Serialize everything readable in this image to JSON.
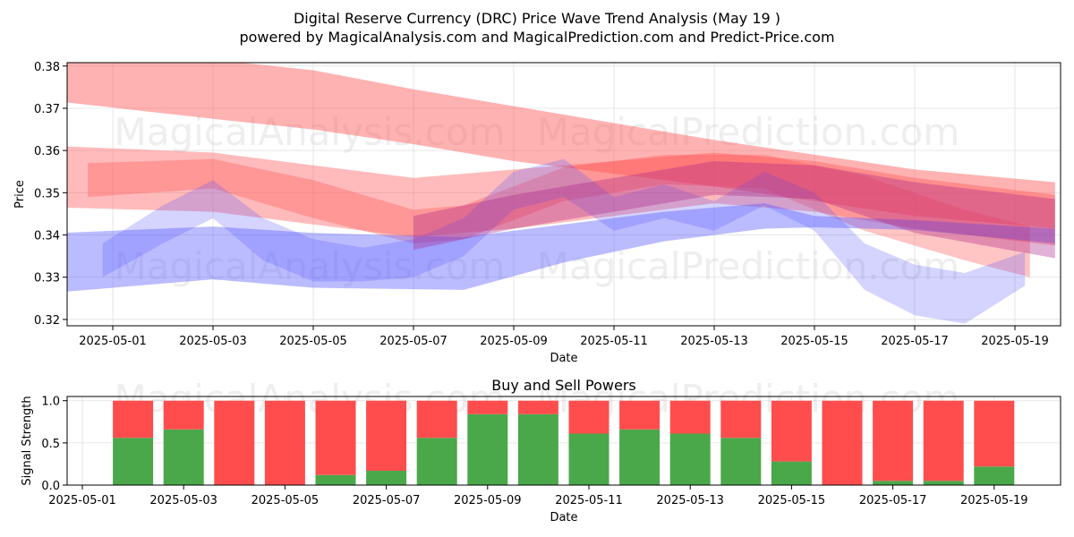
{
  "title_line1": "Digital Reserve Currency (DRC) Price Wave Trend Analysis (May 19 )",
  "title_line2": "powered by MagicalAnalysis.com and MagicalPrediction.com and Predict-Price.com",
  "watermarks": [
    "MagicalAnalysis.com",
    "MagicalPrediction.com"
  ],
  "colors": {
    "sell": "#ff4d4d",
    "buy": "#4aa84a",
    "red_band": "#ff5555",
    "blue_band": "#5555ff",
    "purple_band": "#aa2288"
  },
  "chart_data": [
    {
      "type": "area",
      "title": "",
      "xlabel": "Date",
      "ylabel": "Price",
      "ylim": [
        0.3185,
        0.3808
      ],
      "grid": true,
      "x_tick_labels": [
        "2025-05-01",
        "2025-05-03",
        "2025-05-05",
        "2025-05-07",
        "2025-05-09",
        "2025-05-11",
        "2025-05-13",
        "2025-05-15",
        "2025-05-17",
        "2025-05-19"
      ],
      "y_tick_labels": [
        "0.32",
        "0.33",
        "0.34",
        "0.35",
        "0.36",
        "0.37",
        "0.38"
      ],
      "y_ticks": [
        0.32,
        0.33,
        0.34,
        0.35,
        0.36,
        0.37,
        0.38
      ],
      "series": [
        {
          "name": "red-wave-upper",
          "color": "red",
          "x": [
            "2025-04-30",
            "2025-05-03",
            "2025-05-05",
            "2025-05-07",
            "2025-05-09",
            "2025-05-11",
            "2025-05-13",
            "2025-05-15",
            "2025-05-17",
            "2025-05-19.8"
          ],
          "upper": [
            0.383,
            0.3815,
            0.379,
            0.3745,
            0.3705,
            0.3665,
            0.3625,
            0.359,
            0.3555,
            0.3525
          ],
          "lower": [
            0.3715,
            0.3675,
            0.365,
            0.3615,
            0.3575,
            0.3545,
            0.3515,
            0.348,
            0.3445,
            0.3415
          ],
          "alpha": 0.45
        },
        {
          "name": "red-wave-mid",
          "color": "red",
          "x": [
            "2025-04-30",
            "2025-05-03",
            "2025-05-05",
            "2025-05-07",
            "2025-05-09",
            "2025-05-11",
            "2025-05-13",
            "2025-05-15",
            "2025-05-17",
            "2025-05-19.8"
          ],
          "upper": [
            0.361,
            0.3595,
            0.3565,
            0.3535,
            0.3555,
            0.3575,
            0.3595,
            0.3575,
            0.3535,
            0.3495
          ],
          "lower": [
            0.3465,
            0.3455,
            0.3425,
            0.3395,
            0.3415,
            0.3445,
            0.3475,
            0.3455,
            0.3415,
            0.3375
          ],
          "alpha": 0.4
        },
        {
          "name": "red-wave-inner",
          "color": "red",
          "x": [
            "2025-04-30.5",
            "2025-05-03",
            "2025-05-05",
            "2025-05-07",
            "2025-05-08",
            "2025-05-10",
            "2025-05-12",
            "2025-05-14",
            "2025-05-16",
            "2025-05-18",
            "2025-05-19.3"
          ],
          "upper": [
            0.357,
            0.358,
            0.353,
            0.346,
            0.347,
            0.356,
            0.359,
            0.359,
            0.354,
            0.346,
            0.342
          ],
          "lower": [
            0.349,
            0.351,
            0.344,
            0.338,
            0.339,
            0.348,
            0.352,
            0.351,
            0.341,
            0.334,
            0.33
          ],
          "alpha": 0.35
        },
        {
          "name": "blue-wave-wide",
          "color": "blue",
          "x": [
            "2025-04-30",
            "2025-05-03",
            "2025-05-05",
            "2025-05-08",
            "2025-05-10",
            "2025-05-12",
            "2025-05-14",
            "2025-05-15",
            "2025-05-17",
            "2025-05-19.8"
          ],
          "upper": [
            0.3405,
            0.342,
            0.3405,
            0.3395,
            0.3425,
            0.3455,
            0.3475,
            0.3445,
            0.3435,
            0.3415
          ],
          "lower": [
            0.3265,
            0.3295,
            0.3275,
            0.327,
            0.3335,
            0.3385,
            0.3415,
            0.3418,
            0.3412,
            0.338
          ],
          "alpha": 0.4
        },
        {
          "name": "blue-wave-osc",
          "color": "blue",
          "x": [
            "2025-04-30.8",
            "2025-05-02",
            "2025-05-03",
            "2025-05-04",
            "2025-05-05",
            "2025-05-06",
            "2025-05-07",
            "2025-05-08",
            "2025-05-09",
            "2025-05-10",
            "2025-05-11",
            "2025-05-12",
            "2025-05-13",
            "2025-05-14",
            "2025-05-15",
            "2025-05-16",
            "2025-05-17",
            "2025-05-18",
            "2025-05-19.2"
          ],
          "upper": [
            0.338,
            0.347,
            0.353,
            0.344,
            0.339,
            0.337,
            0.339,
            0.344,
            0.355,
            0.358,
            0.349,
            0.352,
            0.348,
            0.355,
            0.35,
            0.338,
            0.333,
            0.331,
            0.336
          ],
          "lower": [
            0.33,
            0.338,
            0.344,
            0.334,
            0.329,
            0.329,
            0.33,
            0.335,
            0.346,
            0.349,
            0.341,
            0.344,
            0.341,
            0.347,
            0.341,
            0.327,
            0.321,
            0.319,
            0.328
          ],
          "alpha": 0.25
        },
        {
          "name": "purple-wave",
          "color": "purple",
          "x": [
            "2025-05-07",
            "2025-05-09",
            "2025-05-11",
            "2025-05-13",
            "2025-05-15",
            "2025-05-17",
            "2025-05-19.8"
          ],
          "upper": [
            0.3445,
            0.3495,
            0.3535,
            0.3575,
            0.3565,
            0.3525,
            0.3485
          ],
          "lower": [
            0.3365,
            0.3415,
            0.3455,
            0.3495,
            0.3485,
            0.3405,
            0.3345
          ],
          "alpha": 0.35
        }
      ]
    },
    {
      "type": "bar",
      "title": "Buy and Sell Powers",
      "xlabel": "Date",
      "ylabel": "Signal Strength",
      "ylim": [
        0,
        1.05
      ],
      "grid": true,
      "x_tick_labels": [
        "2025-05-01",
        "2025-05-03",
        "2025-05-05",
        "2025-05-07",
        "2025-05-09",
        "2025-05-11",
        "2025-05-13",
        "2025-05-15",
        "2025-05-17",
        "2025-05-19"
      ],
      "y_tick_labels": [
        "0.0",
        "0.5",
        "1.0"
      ],
      "y_ticks": [
        0,
        0.5,
        1.0
      ],
      "categories": [
        "2025-05-02",
        "2025-05-03",
        "2025-05-04",
        "2025-05-05",
        "2025-05-06",
        "2025-05-07",
        "2025-05-08",
        "2025-05-09",
        "2025-05-10",
        "2025-05-11",
        "2025-05-12",
        "2025-05-13",
        "2025-05-14",
        "2025-05-15",
        "2025-05-16",
        "2025-05-17",
        "2025-05-18",
        "2025-05-19"
      ],
      "series": [
        {
          "name": "Buy",
          "values": [
            0.56,
            0.66,
            0.0,
            0.0,
            0.12,
            0.17,
            0.56,
            0.84,
            0.84,
            0.61,
            0.66,
            0.61,
            0.56,
            0.28,
            0.0,
            0.05,
            0.05,
            0.22
          ]
        },
        {
          "name": "Sell",
          "values": [
            0.44,
            0.34,
            1.0,
            1.0,
            0.88,
            0.83,
            0.44,
            0.16,
            0.16,
            0.39,
            0.34,
            0.39,
            0.44,
            0.72,
            1.0,
            0.95,
            0.95,
            0.78
          ]
        }
      ]
    }
  ]
}
